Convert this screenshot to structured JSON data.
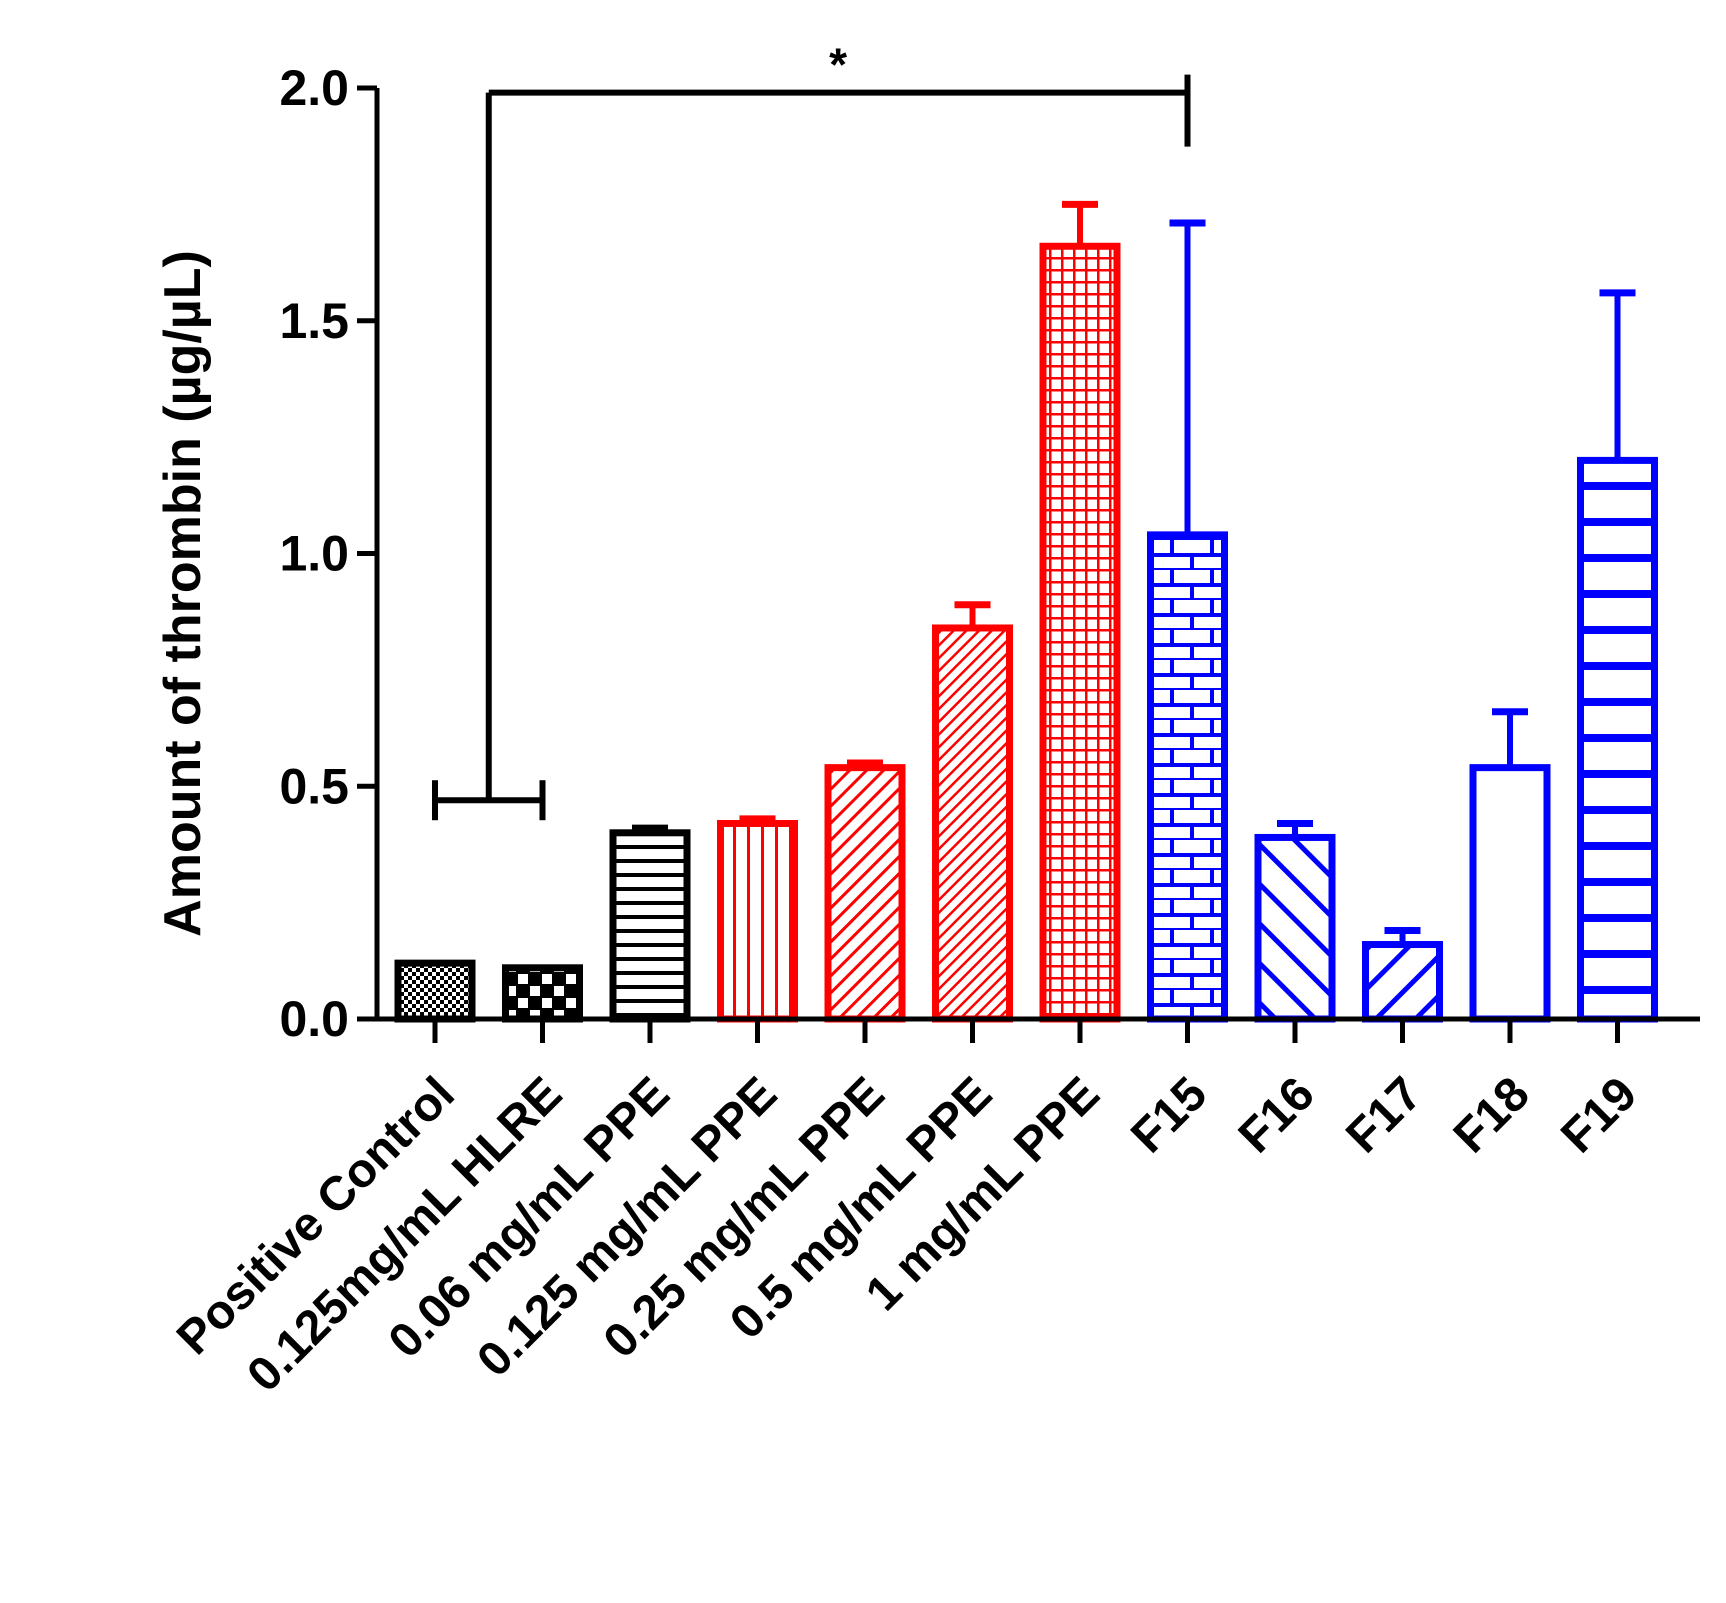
{
  "chart_data": {
    "type": "bar",
    "title": "",
    "xlabel": "",
    "ylabel": "Amount of thrombin (µg/µL)",
    "ylim": [
      0,
      2.0
    ],
    "yticks": [
      0.0,
      0.5,
      1.0,
      1.5,
      2.0
    ],
    "ytick_labels": [
      "0.0",
      "0.5",
      "1.0",
      "1.5",
      "2.0"
    ],
    "grid": false,
    "legend": "none",
    "categories": [
      "Positive Control",
      "0.125mg/mL HLRE",
      "0.06 mg/mL PPE",
      "0.125 mg/mL PPE",
      "0.25 mg/mL PPE",
      "0.5 mg/mL PPE",
      "1 mg/mL PPE",
      "F15",
      "F16",
      "F17",
      "F18",
      "F19"
    ],
    "values": [
      0.12,
      0.11,
      0.4,
      0.42,
      0.54,
      0.84,
      1.66,
      1.04,
      0.39,
      0.16,
      0.54,
      1.2
    ],
    "errors": [
      0.0,
      0.0,
      0.01,
      0.01,
      0.01,
      0.05,
      0.09,
      0.67,
      0.03,
      0.03,
      0.12,
      0.36
    ],
    "colors": [
      "#000000",
      "#000000",
      "#000000",
      "#ff0000",
      "#ff0000",
      "#ff0000",
      "#ff0000",
      "#0000ff",
      "#0000ff",
      "#0000ff",
      "#0000ff",
      "#0000ff"
    ],
    "patterns": [
      "checker-fine",
      "checker-coarse",
      "horizontal",
      "vertical",
      "diagonal-up",
      "diagonal-up-dense",
      "grid",
      "brick",
      "diagonal-down",
      "diagonal-up-wide",
      "none",
      "horizontal-wide"
    ],
    "significance": {
      "label": "*",
      "from_categories": [
        "Positive Control",
        "0.125mg/mL HLRE"
      ],
      "to_category": "F15",
      "bracket_level": 0.47,
      "top_level": 1.99
    }
  }
}
